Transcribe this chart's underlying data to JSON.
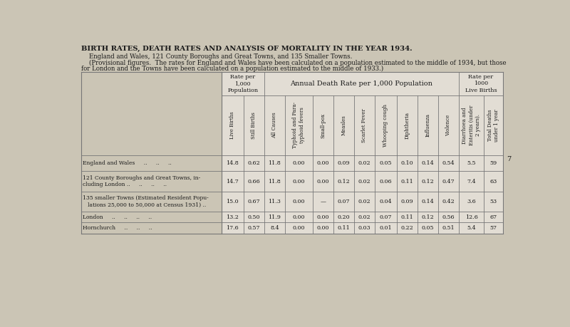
{
  "title": "BIRTH RATES, DEATH RATES AND ANALYSIS OF MORTALITY IN THE YEAR 1934.",
  "subtitle_line1": "    England and Wales, 121 County Boroughs and Great Towns, and 135 Smaller Towns.",
  "subtitle_line2": "    (Provisional figures.  The rates for England and Wales have been calculated on a population estimated to the middle of 1934, but those",
  "subtitle_line3": "for London and the Towns have been calculated on a population estimated to the middle of 1933.)",
  "bg_color": "#cbc5b5",
  "table_bg": "#e2ddd4",
  "border_color": "#777777",
  "col_header_labels": [
    "Live Births",
    "Still Births",
    "All Causes",
    "Typhoid and Para-\ntyphoid fevers",
    "Small-pox",
    "Measles",
    "Scarlet Fever",
    "Whooping cough",
    "Diphtheria",
    "Influenza",
    "Violence",
    "Diarrhoea and\nEnteritis (under\n2 years).",
    "Total Deaths\nunder 1 year"
  ],
  "data": [
    [
      "14.8",
      "0.62",
      "11.8",
      "0.00",
      "0.00",
      "0.09",
      "0.02",
      "0.05",
      "0.10",
      "0.14",
      "0.54",
      "5.5",
      "59"
    ],
    [
      "14.7",
      "0.66",
      "11.8",
      "0.00",
      "0.00",
      "0.12",
      "0.02",
      "0.06",
      "0.11",
      "0.12",
      "0.47",
      "7.4",
      "63"
    ],
    [
      "15.0",
      "0.67",
      "11.3",
      "0.00",
      "—",
      "0.07",
      "0.02",
      "0.04",
      "0.09",
      "0.14",
      "0.42",
      "3.6",
      "53"
    ],
    [
      "13.2",
      "0.50",
      "11.9",
      "0.00",
      "0.00",
      "0.20",
      "0.02",
      "0.07",
      "0.11",
      "0.12",
      "0.56",
      "12.6",
      "67"
    ],
    [
      "17.6",
      "0.57",
      "8.4",
      "0.00",
      "0.00",
      "0.11",
      "0.03",
      "0.01",
      "0.22",
      "0.05",
      "0.51",
      "5.4",
      "57"
    ]
  ],
  "row_labels": [
    "England and Wales   ..   ..   ..",
    "121 County Boroughs and Great Towns, in-\ncluding London ..   ..   ..   ..",
    "135 smaller Towns (Estimated Resident Popu-\n   lations 25,000 to 50,000 at Census 1931) ..",
    "London   ..   ..   ..   ..",
    "Hornchurch   ..   ..   .."
  ],
  "page_number": "7",
  "text_color": "#1a1a1a"
}
